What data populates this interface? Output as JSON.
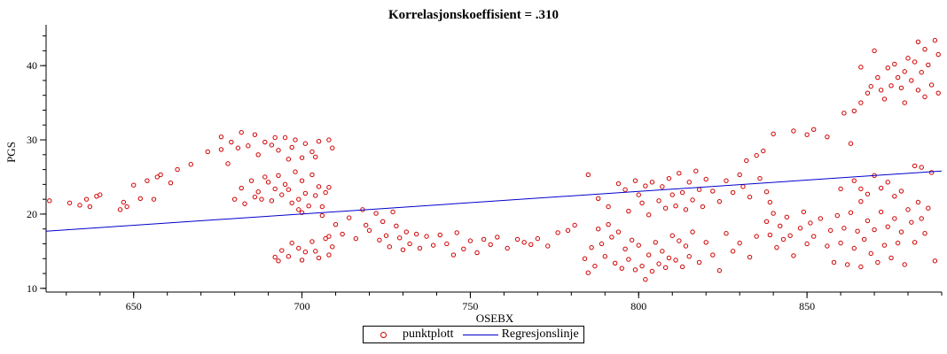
{
  "chart_data": {
    "type": "scatter",
    "title": "Korrelasjonskoeffisient = .310",
    "xlabel": "OSEBX",
    "ylabel": "PGS",
    "xlim": [
      624,
      890
    ],
    "ylim": [
      9.5,
      45.5
    ],
    "xticks": [
      650,
      700,
      750,
      800,
      850
    ],
    "yticks": [
      10,
      20,
      30,
      40
    ],
    "grid": false,
    "legend_position": "bottom-center",
    "series": [
      {
        "name": "punktplott",
        "kind": "scatter",
        "color": "#d00000",
        "marker": "open-circle",
        "points": [
          [
            625,
            21.8
          ],
          [
            631,
            21.5
          ],
          [
            634,
            21.2
          ],
          [
            636,
            22.0
          ],
          [
            637,
            21.0
          ],
          [
            639,
            22.4
          ],
          [
            640,
            22.6
          ],
          [
            646,
            20.6
          ],
          [
            647,
            21.6
          ],
          [
            648,
            21.0
          ],
          [
            650,
            23.9
          ],
          [
            652,
            22.1
          ],
          [
            654,
            24.5
          ],
          [
            656,
            22.0
          ],
          [
            657,
            25.0
          ],
          [
            658,
            25.3
          ],
          [
            661,
            24.2
          ],
          [
            663,
            26.0
          ],
          [
            667,
            26.7
          ],
          [
            672,
            28.4
          ],
          [
            676,
            30.4
          ],
          [
            676,
            28.7
          ],
          [
            678,
            26.8
          ],
          [
            679,
            29.7
          ],
          [
            681,
            28.9
          ],
          [
            682,
            31.0
          ],
          [
            684,
            29.2
          ],
          [
            686,
            30.7
          ],
          [
            687,
            28.0
          ],
          [
            689,
            29.7
          ],
          [
            691,
            29.3
          ],
          [
            692,
            30.3
          ],
          [
            693,
            28.6
          ],
          [
            695,
            30.3
          ],
          [
            696,
            27.4
          ],
          [
            697,
            29.0
          ],
          [
            698,
            30.0
          ],
          [
            700,
            27.6
          ],
          [
            701,
            29.5
          ],
          [
            703,
            28.4
          ],
          [
            704,
            27.7
          ],
          [
            705,
            29.8
          ],
          [
            708,
            30.0
          ],
          [
            709,
            28.9
          ],
          [
            680,
            22.0
          ],
          [
            682,
            23.5
          ],
          [
            683,
            21.4
          ],
          [
            685,
            24.5
          ],
          [
            686,
            22.3
          ],
          [
            687,
            23.0
          ],
          [
            688,
            22.0
          ],
          [
            689,
            25.0
          ],
          [
            690,
            24.3
          ],
          [
            691,
            21.8
          ],
          [
            692,
            23.4
          ],
          [
            693,
            25.2
          ],
          [
            694,
            22.6
          ],
          [
            695,
            24.0
          ],
          [
            696,
            23.3
          ],
          [
            697,
            21.5
          ],
          [
            698,
            25.7
          ],
          [
            699,
            22.0
          ],
          [
            700,
            24.5
          ],
          [
            701,
            22.8
          ],
          [
            702,
            21.1
          ],
          [
            703,
            25.3
          ],
          [
            704,
            22.5
          ],
          [
            705,
            23.7
          ],
          [
            706,
            21.0
          ],
          [
            707,
            22.9
          ],
          [
            708,
            23.6
          ],
          [
            699,
            20.6
          ],
          [
            700,
            20.2
          ],
          [
            692,
            14.2
          ],
          [
            693,
            13.7
          ],
          [
            694,
            15.1
          ],
          [
            696,
            14.3
          ],
          [
            697,
            16.1
          ],
          [
            699,
            15.4
          ],
          [
            700,
            13.8
          ],
          [
            701,
            14.9
          ],
          [
            703,
            16.3
          ],
          [
            704,
            15.0
          ],
          [
            705,
            14.1
          ],
          [
            707,
            16.7
          ],
          [
            708,
            14.5
          ],
          [
            709,
            15.6
          ],
          [
            706,
            19.8
          ],
          [
            708,
            17.0
          ],
          [
            710,
            18.6
          ],
          [
            712,
            17.3
          ],
          [
            714,
            19.5
          ],
          [
            716,
            16.7
          ],
          [
            718,
            20.6
          ],
          [
            719,
            18.5
          ],
          [
            720,
            17.8
          ],
          [
            722,
            20.1
          ],
          [
            723,
            16.5
          ],
          [
            724,
            19.0
          ],
          [
            725,
            17.1
          ],
          [
            726,
            15.6
          ],
          [
            727,
            20.3
          ],
          [
            728,
            18.4
          ],
          [
            729,
            16.8
          ],
          [
            730,
            15.2
          ],
          [
            731,
            17.6
          ],
          [
            732,
            16.0
          ],
          [
            734,
            17.3
          ],
          [
            735,
            15.4
          ],
          [
            737,
            17.0
          ],
          [
            739,
            15.8
          ],
          [
            741,
            17.2
          ],
          [
            743,
            16.0
          ],
          [
            745,
            14.5
          ],
          [
            746,
            17.5
          ],
          [
            748,
            15.3
          ],
          [
            750,
            16.4
          ],
          [
            752,
            14.8
          ],
          [
            754,
            16.6
          ],
          [
            756,
            15.9
          ],
          [
            758,
            16.9
          ],
          [
            761,
            15.4
          ],
          [
            764,
            16.6
          ],
          [
            766,
            16.2
          ],
          [
            768,
            15.9
          ],
          [
            770,
            16.7
          ],
          [
            773,
            15.7
          ],
          [
            776,
            17.5
          ],
          [
            779,
            17.8
          ],
          [
            781,
            18.5
          ],
          [
            784,
            14.0
          ],
          [
            785,
            12.1
          ],
          [
            786,
            15.5
          ],
          [
            787,
            13.0
          ],
          [
            788,
            18.0
          ],
          [
            789,
            16.0
          ],
          [
            790,
            14.3
          ],
          [
            791,
            18.6
          ],
          [
            792,
            16.9
          ],
          [
            793,
            13.4
          ],
          [
            794,
            17.6
          ],
          [
            795,
            12.7
          ],
          [
            796,
            15.3
          ],
          [
            797,
            13.9
          ],
          [
            798,
            16.5
          ],
          [
            799,
            12.5
          ],
          [
            800,
            15.8
          ],
          [
            801,
            13.0
          ],
          [
            802,
            11.2
          ],
          [
            803,
            14.5
          ],
          [
            804,
            12.3
          ],
          [
            805,
            16.2
          ],
          [
            806,
            13.3
          ],
          [
            807,
            15.0
          ],
          [
            808,
            12.8
          ],
          [
            809,
            14.1
          ],
          [
            810,
            17.1
          ],
          [
            811,
            13.8
          ],
          [
            812,
            16.4
          ],
          [
            813,
            12.9
          ],
          [
            814,
            15.7
          ],
          [
            815,
            14.3
          ],
          [
            816,
            17.6
          ],
          [
            818,
            13.5
          ],
          [
            820,
            16.2
          ],
          [
            822,
            14.5
          ],
          [
            824,
            12.4
          ],
          [
            826,
            17.4
          ],
          [
            828,
            15.0
          ],
          [
            830,
            16.1
          ],
          [
            833,
            14.2
          ],
          [
            835,
            17.0
          ],
          [
            785,
            25.3
          ],
          [
            788,
            22.1
          ],
          [
            791,
            21.0
          ],
          [
            794,
            24.1
          ],
          [
            796,
            23.3
          ],
          [
            797,
            20.4
          ],
          [
            799,
            24.5
          ],
          [
            800,
            22.6
          ],
          [
            801,
            21.5
          ],
          [
            802,
            23.8
          ],
          [
            803,
            19.9
          ],
          [
            804,
            24.3
          ],
          [
            806,
            21.8
          ],
          [
            807,
            23.7
          ],
          [
            808,
            20.8
          ],
          [
            809,
            24.8
          ],
          [
            810,
            22.6
          ],
          [
            811,
            21.1
          ],
          [
            812,
            25.5
          ],
          [
            813,
            22.9
          ],
          [
            814,
            20.6
          ],
          [
            815,
            24.3
          ],
          [
            816,
            21.9
          ],
          [
            817,
            25.8
          ],
          [
            818,
            23.3
          ],
          [
            819,
            21.0
          ],
          [
            820,
            24.7
          ],
          [
            822,
            23.1
          ],
          [
            824,
            21.7
          ],
          [
            826,
            24.5
          ],
          [
            828,
            22.9
          ],
          [
            831,
            23.7
          ],
          [
            833,
            22.3
          ],
          [
            836,
            24.8
          ],
          [
            838,
            23.0
          ],
          [
            839,
            21.6
          ],
          [
            838,
            19.0
          ],
          [
            839,
            17.2
          ],
          [
            840,
            20.1
          ],
          [
            841,
            15.5
          ],
          [
            842,
            18.4
          ],
          [
            843,
            16.6
          ],
          [
            844,
            19.6
          ],
          [
            845,
            17.1
          ],
          [
            846,
            14.4
          ],
          [
            848,
            18.1
          ],
          [
            849,
            20.3
          ],
          [
            850,
            16.0
          ],
          [
            851,
            18.8
          ],
          [
            852,
            17.0
          ],
          [
            854,
            19.4
          ],
          [
            856,
            15.7
          ],
          [
            857,
            17.8
          ],
          [
            858,
            13.5
          ],
          [
            859,
            19.8
          ],
          [
            860,
            16.1
          ],
          [
            861,
            18.1
          ],
          [
            862,
            13.2
          ],
          [
            863,
            20.2
          ],
          [
            864,
            15.4
          ],
          [
            865,
            17.7
          ],
          [
            866,
            12.9
          ],
          [
            867,
            16.6
          ],
          [
            868,
            19.1
          ],
          [
            869,
            14.7
          ],
          [
            870,
            17.9
          ],
          [
            871,
            13.5
          ],
          [
            872,
            20.3
          ],
          [
            873,
            15.8
          ],
          [
            874,
            18.3
          ],
          [
            875,
            14.1
          ],
          [
            876,
            19.4
          ],
          [
            877,
            16.1
          ],
          [
            878,
            17.6
          ],
          [
            879,
            13.2
          ],
          [
            880,
            20.6
          ],
          [
            881,
            18.9
          ],
          [
            882,
            16.2
          ],
          [
            883,
            21.6
          ],
          [
            884,
            19.4
          ],
          [
            885,
            17.4
          ],
          [
            886,
            20.8
          ],
          [
            888,
            13.7
          ],
          [
            860,
            23.4
          ],
          [
            864,
            24.5
          ],
          [
            866,
            21.7
          ],
          [
            868,
            22.7
          ],
          [
            870,
            25.2
          ],
          [
            872,
            23.5
          ],
          [
            874,
            24.3
          ],
          [
            876,
            22.4
          ],
          [
            878,
            23.1
          ],
          [
            882,
            26.5
          ],
          [
            884,
            26.3
          ],
          [
            887,
            25.6
          ],
          [
            861,
            33.6
          ],
          [
            864,
            33.9
          ],
          [
            866,
            35.0
          ],
          [
            868,
            36.3
          ],
          [
            869,
            37.2
          ],
          [
            871,
            38.4
          ],
          [
            872,
            36.7
          ],
          [
            874,
            39.7
          ],
          [
            875,
            37.3
          ],
          [
            876,
            40.2
          ],
          [
            877,
            38.4
          ],
          [
            878,
            37.0
          ],
          [
            879,
            39.2
          ],
          [
            880,
            41.0
          ],
          [
            881,
            38.0
          ],
          [
            882,
            40.5
          ],
          [
            883,
            36.7
          ],
          [
            884,
            39.1
          ],
          [
            885,
            42.2
          ],
          [
            886,
            40.1
          ],
          [
            887,
            37.4
          ],
          [
            888,
            43.4
          ],
          [
            889,
            41.5
          ],
          [
            870,
            42.0
          ],
          [
            866,
            39.8
          ],
          [
            873,
            35.5
          ],
          [
            879,
            35.0
          ],
          [
            885,
            35.8
          ],
          [
            883,
            43.2
          ],
          [
            889,
            36.3
          ],
          [
            830,
            25.3
          ],
          [
            832,
            27.2
          ],
          [
            835,
            27.9
          ],
          [
            837,
            28.5
          ],
          [
            840,
            30.8
          ],
          [
            846,
            31.2
          ],
          [
            850,
            30.7
          ],
          [
            852,
            31.4
          ],
          [
            856,
            30.4
          ],
          [
            863,
            29.5
          ],
          [
            866,
            23.4
          ]
        ]
      },
      {
        "name": "Regresjonslinje",
        "kind": "line",
        "color": "#0000cc",
        "points": [
          [
            624,
            17.7
          ],
          [
            890,
            25.8
          ]
        ]
      }
    ]
  }
}
